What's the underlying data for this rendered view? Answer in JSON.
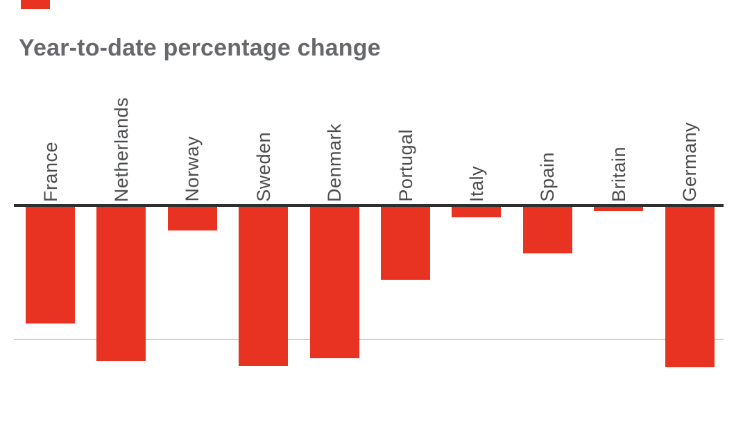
{
  "title": "Year-to-date percentage change",
  "chart_data": {
    "type": "bar",
    "title": "Year-to-date percentage change",
    "categories": [
      "France",
      "Netherlands",
      "Norway",
      "Sweden",
      "Denmark",
      "Portugal",
      "Italy",
      "Spain",
      "Britain",
      "Germany"
    ],
    "values": [
      -8.8,
      -11.6,
      -1.8,
      -12.0,
      -11.4,
      -5.5,
      -0.8,
      -3.5,
      -0.3,
      -12.1
    ],
    "unit": "percent",
    "xlabel": "",
    "ylabel": "",
    "ylim": [
      -13,
      0
    ],
    "gridlines": [
      -10
    ],
    "gridline_labels_visible": false,
    "legend": "none",
    "bar_direction": "down-from-zero",
    "category_label_rotation_deg": 90
  },
  "colors": {
    "background": "#FFFFFF",
    "bar": "#E83323",
    "brand_tab": "#E83323",
    "zero_axis_line": "#2E2E2E",
    "gridline": "#D0D0D0",
    "title_text": "#66686B",
    "label_text": "#4B4C4E"
  }
}
